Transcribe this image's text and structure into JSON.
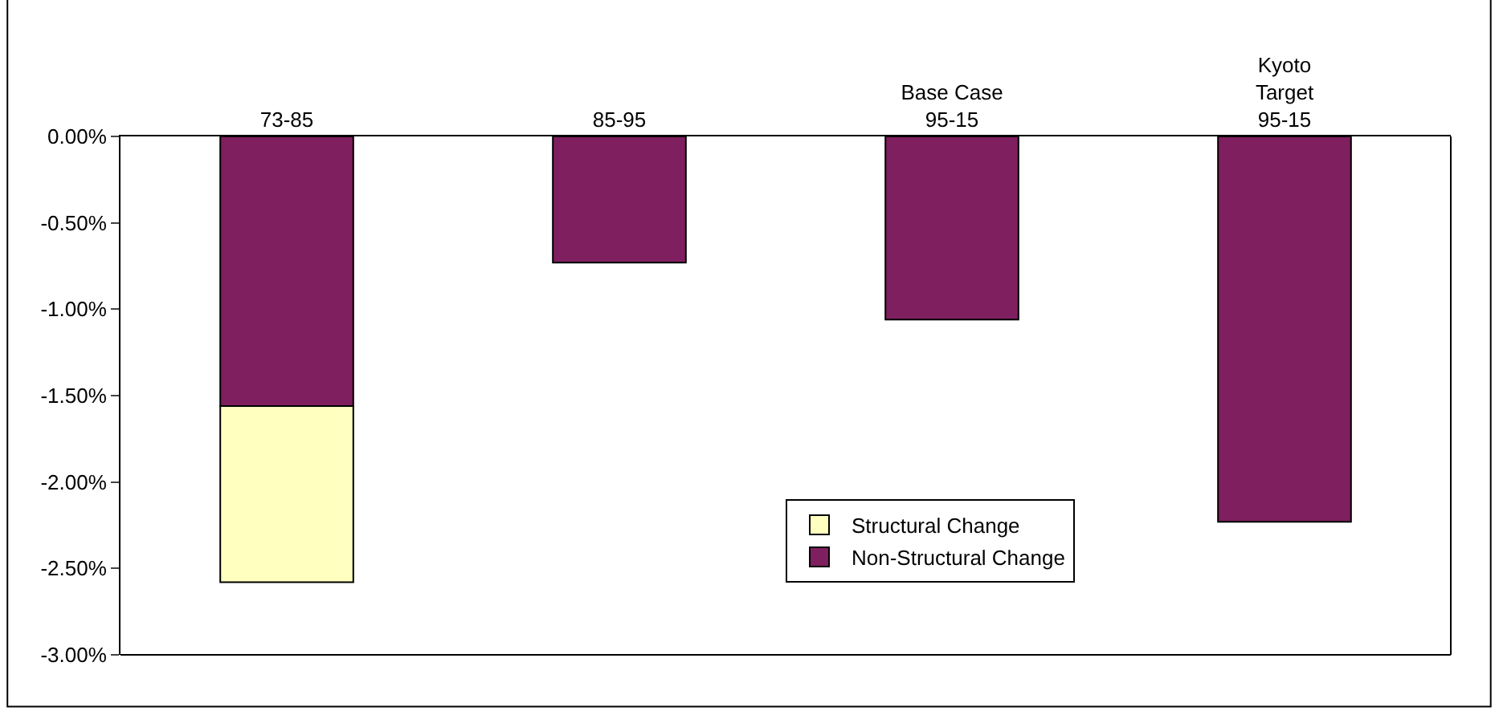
{
  "chart_data": {
    "type": "bar",
    "stacked": true,
    "categories": [
      "73-85",
      "85-95",
      "Base Case\n95-15",
      "Kyoto\nTarget\n95-15"
    ],
    "series": [
      {
        "name": "Non-Structural Change",
        "color": "#7f1f5f",
        "values": [
          -1.56,
          -0.73,
          -1.06,
          -2.23
        ]
      },
      {
        "name": "Structural Change",
        "color": "#ffffc0",
        "values": [
          -1.02,
          null,
          null,
          null
        ]
      }
    ],
    "ylim": [
      -3,
      0
    ],
    "yticks": [
      {
        "value": 0,
        "label": "0.00%"
      },
      {
        "value": -0.5,
        "label": "-0.50%"
      },
      {
        "value": -1,
        "label": "-1.00%"
      },
      {
        "value": -1.5,
        "label": "-1.50%"
      },
      {
        "value": -2,
        "label": "-2.00%"
      },
      {
        "value": -2.5,
        "label": "-2.50%"
      },
      {
        "value": -3,
        "label": "-3.00%"
      }
    ],
    "legend": "bottom"
  }
}
